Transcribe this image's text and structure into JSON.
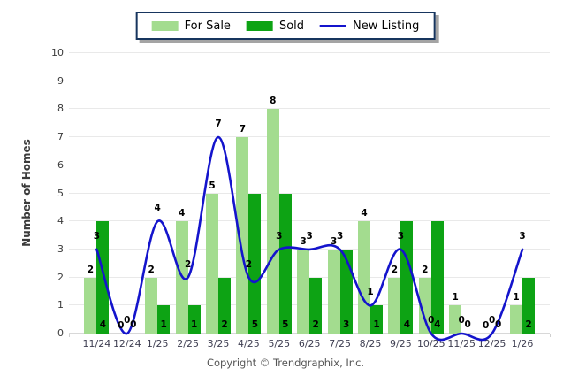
{
  "legend": {
    "items": [
      {
        "label": "For Sale",
        "color": "#A3DC8F",
        "kind": "swatch"
      },
      {
        "label": "Sold",
        "color": "#0DA314",
        "kind": "swatch"
      },
      {
        "label": "New Listing",
        "color": "#1414CC",
        "kind": "line"
      }
    ]
  },
  "axis": {
    "y_title": "Number of Homes"
  },
  "footer": {
    "text": "Copyright © Trendgraphix, Inc."
  },
  "colors": {
    "for_sale": "#A3DC8F",
    "sold": "#0DA314",
    "new_listing": "#1414CC",
    "grid": "#e9e9e9"
  },
  "chart_data": {
    "type": "bar",
    "subtype": "grouped-bars-with-line-overlay",
    "title": "",
    "xlabel": "",
    "ylabel": "Number of Homes",
    "ylim": [
      0,
      10
    ],
    "yticks": [
      0,
      1,
      2,
      3,
      4,
      5,
      6,
      7,
      8,
      9,
      10
    ],
    "grid": true,
    "legend_position": "top-center",
    "categories": [
      "11/24",
      "12/24",
      "1/25",
      "2/25",
      "3/25",
      "4/25",
      "5/25",
      "6/25",
      "7/25",
      "8/25",
      "9/25",
      "10/25",
      "11/25",
      "12/25",
      "1/26"
    ],
    "series": [
      {
        "name": "For Sale",
        "type": "bar",
        "color": "#A3DC8F",
        "values": [
          2,
          0,
          2,
          4,
          5,
          7,
          8,
          3,
          3,
          4,
          2,
          2,
          1,
          0,
          1
        ]
      },
      {
        "name": "Sold",
        "type": "bar",
        "color": "#0DA314",
        "values": [
          4,
          0,
          1,
          1,
          2,
          5,
          5,
          2,
          3,
          1,
          4,
          4,
          0,
          0,
          2
        ]
      },
      {
        "name": "New Listing",
        "type": "line",
        "color": "#1414CC",
        "values": [
          3,
          0,
          4,
          2,
          7,
          2,
          3,
          3,
          3,
          1,
          3,
          0,
          0,
          0,
          3
        ]
      }
    ],
    "data_labels_visible": true
  }
}
